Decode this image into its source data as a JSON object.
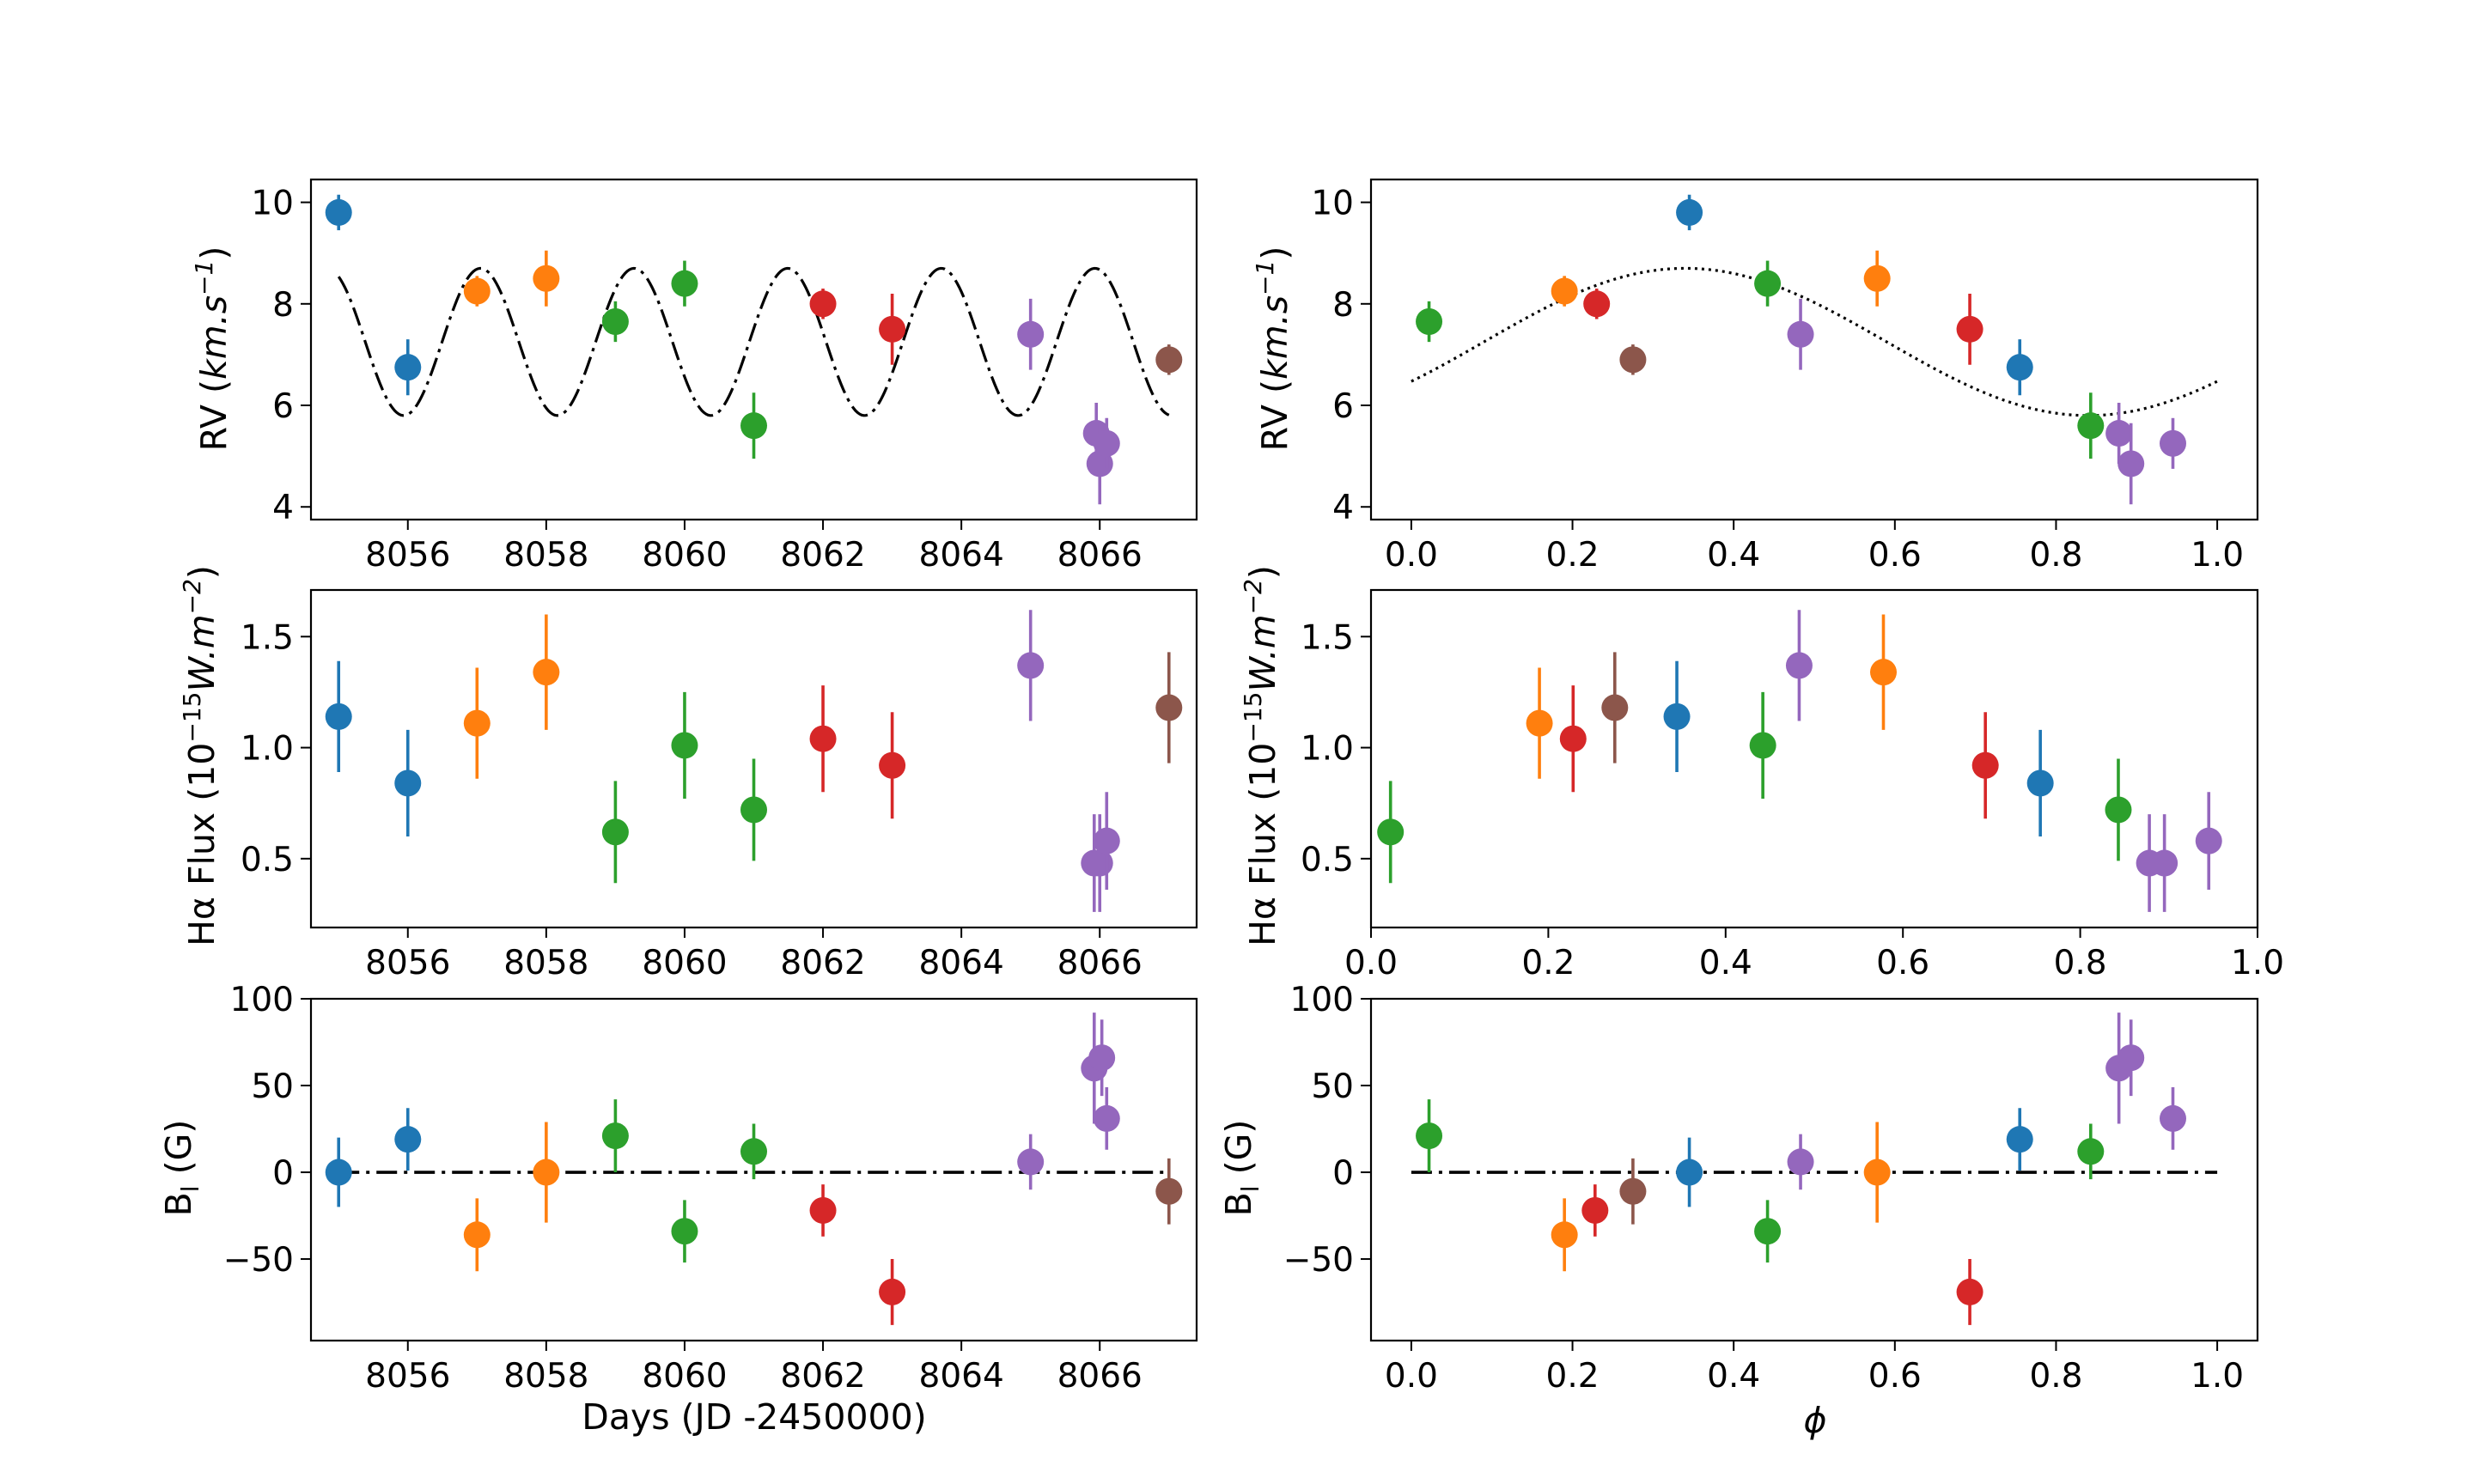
{
  "figure": {
    "rv_ylabel_prefix": "RV (",
    "rv_ylabel_unit": "km.s",
    "rv_ylabel_exp": "−1",
    "rv_ylabel_suffix": ")",
    "flux_ylabel_prefix": "Hα Flux (10",
    "flux_ylabel_exp1": "−15",
    "flux_ylabel_unit": "W.m",
    "flux_ylabel_exp2": "−2",
    "flux_ylabel_suffix": ")",
    "bl_ylabel_main": "B",
    "bl_ylabel_sub": "l",
    "bl_ylabel_suffix": " (G)",
    "days_xlabel": "Days (JD -2450000)",
    "phase_xlabel": "ϕ"
  },
  "colors": {
    "blue": "#1f77b4",
    "orange": "#ff7f0e",
    "green": "#2ca02c",
    "red": "#d62728",
    "purple": "#9467bd",
    "brown": "#8c564b"
  },
  "chart_data": [
    {
      "id": "rv_days",
      "type": "scatter",
      "xlabel": "Days (JD -2450000)",
      "ylabel": "RV (km.s^-1)",
      "xlim": [
        8054.6,
        8067.4
      ],
      "ylim": [
        3.75,
        10.45
      ],
      "xticks": [
        8056,
        8058,
        8060,
        8062,
        8064,
        8066
      ],
      "xtick_labels": [
        "8056",
        "8058",
        "8060",
        "8062",
        "8064",
        "8066"
      ],
      "yticks": [
        4,
        6,
        8,
        10
      ],
      "ytick_labels": [
        "4",
        "6",
        "8",
        "10"
      ],
      "model": {
        "style": "dashdot",
        "x_range": [
          8055,
          8067
        ],
        "mean": 7.25,
        "amplitude": 1.45,
        "period": 2.22,
        "peak_x": 8057.05
      },
      "points": [
        {
          "x": 8055,
          "y": 9.8,
          "err": 0.35,
          "c": "blue"
        },
        {
          "x": 8056,
          "y": 6.75,
          "err": 0.55,
          "c": "blue"
        },
        {
          "x": 8057,
          "y": 8.25,
          "err": 0.3,
          "c": "orange"
        },
        {
          "x": 8058,
          "y": 8.5,
          "err": 0.55,
          "c": "orange"
        },
        {
          "x": 8059,
          "y": 7.65,
          "err": 0.4,
          "c": "green"
        },
        {
          "x": 8060,
          "y": 8.4,
          "err": 0.45,
          "c": "green"
        },
        {
          "x": 8061,
          "y": 5.6,
          "err": 0.65,
          "c": "green"
        },
        {
          "x": 8062,
          "y": 8.0,
          "err": 0.3,
          "c": "red"
        },
        {
          "x": 8063,
          "y": 7.5,
          "err": 0.7,
          "c": "red"
        },
        {
          "x": 8065,
          "y": 7.4,
          "err": 0.7,
          "c": "purple"
        },
        {
          "x": 8065.95,
          "y": 5.45,
          "err": 0.6,
          "c": "purple"
        },
        {
          "x": 8066.0,
          "y": 4.85,
          "err": 0.8,
          "c": "purple"
        },
        {
          "x": 8066.1,
          "y": 5.25,
          "err": 0.5,
          "c": "purple"
        },
        {
          "x": 8067,
          "y": 6.9,
          "err": 0.3,
          "c": "brown"
        }
      ]
    },
    {
      "id": "rv_phase",
      "type": "scatter",
      "xlabel": "ϕ",
      "ylabel": "RV (km.s^-1)",
      "xlim": [
        -0.05,
        1.05
      ],
      "ylim": [
        3.75,
        10.45
      ],
      "xticks": [
        0.0,
        0.2,
        0.4,
        0.6,
        0.8,
        1.0
      ],
      "xtick_labels": [
        "0.0",
        "0.2",
        "0.4",
        "0.6",
        "0.8",
        "1.0"
      ],
      "yticks": [
        4,
        6,
        8,
        10
      ],
      "ytick_labels": [
        "4",
        "6",
        "8",
        "10"
      ],
      "model": {
        "style": "dotted",
        "x_range": [
          0,
          1
        ],
        "mean": 7.25,
        "amplitude": 1.45,
        "period": 1.0,
        "peak_x": 0.34
      },
      "points": [
        {
          "x": 0.022,
          "y": 7.65,
          "err": 0.4,
          "c": "green"
        },
        {
          "x": 0.19,
          "y": 8.25,
          "err": 0.3,
          "c": "orange"
        },
        {
          "x": 0.23,
          "y": 8.0,
          "err": 0.3,
          "c": "red"
        },
        {
          "x": 0.275,
          "y": 6.9,
          "err": 0.3,
          "c": "brown"
        },
        {
          "x": 0.345,
          "y": 9.8,
          "err": 0.35,
          "c": "blue"
        },
        {
          "x": 0.442,
          "y": 8.4,
          "err": 0.45,
          "c": "green"
        },
        {
          "x": 0.483,
          "y": 7.4,
          "err": 0.7,
          "c": "purple"
        },
        {
          "x": 0.578,
          "y": 8.5,
          "err": 0.55,
          "c": "orange"
        },
        {
          "x": 0.693,
          "y": 7.5,
          "err": 0.7,
          "c": "red"
        },
        {
          "x": 0.755,
          "y": 6.75,
          "err": 0.55,
          "c": "blue"
        },
        {
          "x": 0.843,
          "y": 5.6,
          "err": 0.65,
          "c": "green"
        },
        {
          "x": 0.878,
          "y": 5.45,
          "err": 0.6,
          "c": "purple"
        },
        {
          "x": 0.893,
          "y": 4.85,
          "err": 0.8,
          "c": "purple"
        },
        {
          "x": 0.945,
          "y": 5.25,
          "err": 0.5,
          "c": "purple"
        }
      ]
    },
    {
      "id": "flux_days",
      "type": "scatter",
      "xlabel": "",
      "ylabel": "Hα Flux (10^-15 W.m^-2)",
      "xlim": [
        8054.6,
        8067.4
      ],
      "ylim": [
        0.19,
        1.71
      ],
      "xticks": [
        8056,
        8058,
        8060,
        8062,
        8064,
        8066
      ],
      "xtick_labels": [
        "8056",
        "8058",
        "8060",
        "8062",
        "8064",
        "8066"
      ],
      "yticks": [
        0.5,
        1.0,
        1.5
      ],
      "ytick_labels": [
        "0.5",
        "1.0",
        "1.5"
      ],
      "points": [
        {
          "x": 8055,
          "y": 1.14,
          "err": 0.25,
          "c": "blue"
        },
        {
          "x": 8056,
          "y": 0.84,
          "err": 0.24,
          "c": "blue"
        },
        {
          "x": 8057,
          "y": 1.11,
          "err": 0.25,
          "c": "orange"
        },
        {
          "x": 8058,
          "y": 1.34,
          "err": 0.26,
          "c": "orange"
        },
        {
          "x": 8059,
          "y": 0.62,
          "err": 0.23,
          "c": "green"
        },
        {
          "x": 8060,
          "y": 1.01,
          "err": 0.24,
          "c": "green"
        },
        {
          "x": 8061,
          "y": 0.72,
          "err": 0.23,
          "c": "green"
        },
        {
          "x": 8062,
          "y": 1.04,
          "err": 0.24,
          "c": "red"
        },
        {
          "x": 8063,
          "y": 0.92,
          "err": 0.24,
          "c": "red"
        },
        {
          "x": 8065,
          "y": 1.37,
          "err": 0.25,
          "c": "purple"
        },
        {
          "x": 8065.92,
          "y": 0.48,
          "err": 0.22,
          "c": "purple"
        },
        {
          "x": 8066.0,
          "y": 0.48,
          "err": 0.22,
          "c": "purple"
        },
        {
          "x": 8066.1,
          "y": 0.58,
          "err": 0.22,
          "c": "purple"
        },
        {
          "x": 8067,
          "y": 1.18,
          "err": 0.25,
          "c": "brown"
        }
      ]
    },
    {
      "id": "flux_phase",
      "type": "scatter",
      "xlabel": "",
      "ylabel": "Hα Flux (10^-15 W.m^-2)",
      "xlim": [
        0.0,
        1.0
      ],
      "ylim": [
        0.19,
        1.71
      ],
      "xticks": [
        0.0,
        0.2,
        0.4,
        0.6,
        0.8,
        1.0
      ],
      "xtick_labels": [
        "0.0",
        "0.2",
        "0.4",
        "0.6",
        "0.8",
        "1.0"
      ],
      "yticks": [
        0.5,
        1.0,
        1.5
      ],
      "ytick_labels": [
        "0.5",
        "1.0",
        "1.5"
      ],
      "points": [
        {
          "x": 0.022,
          "y": 0.62,
          "err": 0.23,
          "c": "green"
        },
        {
          "x": 0.19,
          "y": 1.11,
          "err": 0.25,
          "c": "orange"
        },
        {
          "x": 0.228,
          "y": 1.04,
          "err": 0.24,
          "c": "red"
        },
        {
          "x": 0.275,
          "y": 1.18,
          "err": 0.25,
          "c": "brown"
        },
        {
          "x": 0.345,
          "y": 1.14,
          "err": 0.25,
          "c": "blue"
        },
        {
          "x": 0.442,
          "y": 1.01,
          "err": 0.24,
          "c": "green"
        },
        {
          "x": 0.483,
          "y": 1.37,
          "err": 0.25,
          "c": "purple"
        },
        {
          "x": 0.578,
          "y": 1.34,
          "err": 0.26,
          "c": "orange"
        },
        {
          "x": 0.693,
          "y": 0.92,
          "err": 0.24,
          "c": "red"
        },
        {
          "x": 0.755,
          "y": 0.84,
          "err": 0.24,
          "c": "blue"
        },
        {
          "x": 0.843,
          "y": 0.72,
          "err": 0.23,
          "c": "green"
        },
        {
          "x": 0.878,
          "y": 0.48,
          "err": 0.22,
          "c": "purple"
        },
        {
          "x": 0.895,
          "y": 0.48,
          "err": 0.22,
          "c": "purple"
        },
        {
          "x": 0.945,
          "y": 0.58,
          "err": 0.22,
          "c": "purple"
        }
      ]
    },
    {
      "id": "bl_days",
      "type": "scatter",
      "xlabel": "Days (JD -2450000)",
      "ylabel": "B_l (G)",
      "xlim": [
        8054.6,
        8067.4
      ],
      "ylim": [
        -97,
        100
      ],
      "xticks": [
        8056,
        8058,
        8060,
        8062,
        8064,
        8066
      ],
      "xtick_labels": [
        "8056",
        "8058",
        "8060",
        "8062",
        "8064",
        "8066"
      ],
      "yticks": [
        -50,
        0,
        50,
        100
      ],
      "ytick_labels": [
        "−50",
        "0",
        "50",
        "100"
      ],
      "reference_line": {
        "style": "dashdot",
        "y": 0,
        "x_range": [
          8055,
          8067
        ]
      },
      "points": [
        {
          "x": 8055,
          "y": 0,
          "err": 20,
          "c": "blue"
        },
        {
          "x": 8056,
          "y": 19,
          "err": 18,
          "c": "blue"
        },
        {
          "x": 8057,
          "y": -36,
          "err": 21,
          "c": "orange"
        },
        {
          "x": 8058,
          "y": 0,
          "err": 29,
          "c": "orange"
        },
        {
          "x": 8059,
          "y": 21,
          "err": 21,
          "c": "green"
        },
        {
          "x": 8060,
          "y": -34,
          "err": 18,
          "c": "green"
        },
        {
          "x": 8061,
          "y": 12,
          "err": 16,
          "c": "green"
        },
        {
          "x": 8062,
          "y": -22,
          "err": 15,
          "c": "red"
        },
        {
          "x": 8063,
          "y": -69,
          "err": 19,
          "c": "red"
        },
        {
          "x": 8065,
          "y": 6,
          "err": 16,
          "c": "purple"
        },
        {
          "x": 8065.92,
          "y": 60,
          "err": 32,
          "c": "purple"
        },
        {
          "x": 8066.03,
          "y": 66,
          "err": 22,
          "c": "purple"
        },
        {
          "x": 8066.1,
          "y": 31,
          "err": 18,
          "c": "purple"
        },
        {
          "x": 8067,
          "y": -11,
          "err": 19,
          "c": "brown"
        }
      ]
    },
    {
      "id": "bl_phase",
      "type": "scatter",
      "xlabel": "ϕ",
      "ylabel": "B_l (G)",
      "xlim": [
        -0.05,
        1.05
      ],
      "ylim": [
        -97,
        100
      ],
      "xticks": [
        0.0,
        0.2,
        0.4,
        0.6,
        0.8,
        1.0
      ],
      "xtick_labels": [
        "0.0",
        "0.2",
        "0.4",
        "0.6",
        "0.8",
        "1.0"
      ],
      "yticks": [
        -50,
        0,
        50,
        100
      ],
      "ytick_labels": [
        "−50",
        "0",
        "50",
        "100"
      ],
      "reference_line": {
        "style": "dashdot",
        "y": 0,
        "x_range": [
          0,
          1
        ]
      },
      "points": [
        {
          "x": 0.022,
          "y": 21,
          "err": 21,
          "c": "green"
        },
        {
          "x": 0.19,
          "y": -36,
          "err": 21,
          "c": "orange"
        },
        {
          "x": 0.228,
          "y": -22,
          "err": 15,
          "c": "red"
        },
        {
          "x": 0.275,
          "y": -11,
          "err": 19,
          "c": "brown"
        },
        {
          "x": 0.345,
          "y": 0,
          "err": 20,
          "c": "blue"
        },
        {
          "x": 0.442,
          "y": -34,
          "err": 18,
          "c": "green"
        },
        {
          "x": 0.483,
          "y": 6,
          "err": 16,
          "c": "purple"
        },
        {
          "x": 0.578,
          "y": 0,
          "err": 29,
          "c": "orange"
        },
        {
          "x": 0.693,
          "y": -69,
          "err": 19,
          "c": "red"
        },
        {
          "x": 0.755,
          "y": 19,
          "err": 18,
          "c": "blue"
        },
        {
          "x": 0.843,
          "y": 12,
          "err": 16,
          "c": "green"
        },
        {
          "x": 0.878,
          "y": 60,
          "err": 32,
          "c": "purple"
        },
        {
          "x": 0.893,
          "y": 66,
          "err": 22,
          "c": "purple"
        },
        {
          "x": 0.945,
          "y": 31,
          "err": 18,
          "c": "purple"
        }
      ]
    }
  ]
}
